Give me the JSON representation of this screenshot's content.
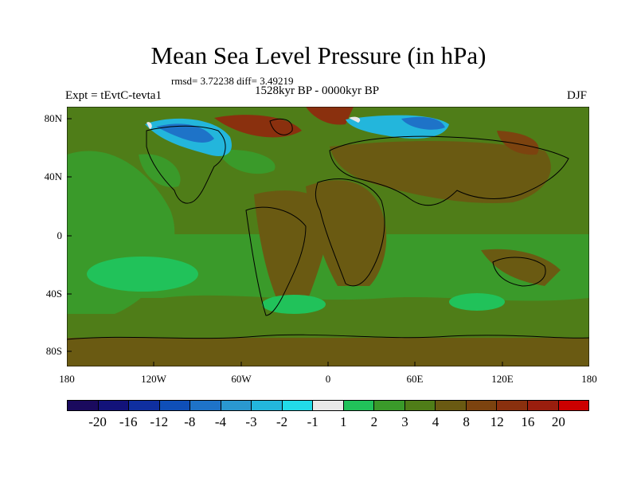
{
  "title": "Mean Sea Level Pressure (in hPa)",
  "stats": "rmsd= 3.72238 diff= 3.49219",
  "period": "1528kyr BP - 0000kyr BP",
  "experiment": "Expt = tEvtC-tevta1",
  "season": "DJF",
  "lat_labels": [
    "80N",
    "40N",
    "0",
    "40S",
    "80S"
  ],
  "lon_labels": [
    "180",
    "120W",
    "60W",
    "0",
    "60E",
    "120E",
    "180"
  ],
  "colorbar": {
    "labels": [
      "-20",
      "-16",
      "-12",
      "-8",
      "-4",
      "-3",
      "-2",
      "-1",
      "1",
      "2",
      "3",
      "4",
      "8",
      "12",
      "16",
      "20"
    ],
    "colors": [
      "#1a0a5e",
      "#12127a",
      "#0f2fa0",
      "#0f4fb8",
      "#1e73c8",
      "#2a98d0",
      "#23b6dc",
      "#22dbe8",
      "#e8e8e8",
      "#21c25a",
      "#3a9a2a",
      "#4f7d18",
      "#6a5a12",
      "#7c430f",
      "#8a300e",
      "#9a1e0e",
      "#cc0000"
    ]
  },
  "legend_colors": {
    "ocean_base": "#4f7d18",
    "land_base": "#6a5a12",
    "negative": "#23b6dc",
    "high": "#8a300e",
    "low_pos": "#21c25a",
    "mid_pos": "#3a9a2a"
  }
}
